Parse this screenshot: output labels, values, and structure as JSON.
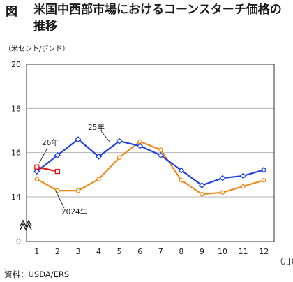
{
  "figure": {
    "label": "図",
    "title": "米国中西部市場におけるコーンスターチ価格の推移",
    "unit_note": "（米セント/ポンド）",
    "source": "資料：USDA/ERS"
  },
  "chart_data": {
    "type": "line",
    "title": "米国中西部市場におけるコーンスターチ価格の推移",
    "ylabel": "（米セント/ポンド）",
    "xlabel": "（月）",
    "x": [
      1,
      2,
      3,
      4,
      5,
      6,
      7,
      8,
      9,
      10,
      11,
      12
    ],
    "x_tick_labels": [
      "1",
      "2",
      "3",
      "4",
      "5",
      "6",
      "7",
      "8",
      "9",
      "10",
      "11",
      "12"
    ],
    "ylim": [
      0,
      20
    ],
    "y_axis_break": true,
    "y_ticks": [
      0,
      14,
      16,
      18,
      20
    ],
    "y_tick_labels": [
      "0",
      "14",
      "16",
      "18",
      "20"
    ],
    "grid": "horizontal",
    "series": [
      {
        "name": "2024年",
        "color": "#f08a1c",
        "marker": "circle",
        "x": [
          1,
          2,
          3,
          4,
          5,
          6,
          7,
          8,
          9,
          10,
          11,
          12
        ],
        "values": [
          14.8,
          14.28,
          14.28,
          14.8,
          15.78,
          16.5,
          16.13,
          14.75,
          14.12,
          14.2,
          14.47,
          14.75
        ]
      },
      {
        "name": "25年",
        "color": "#1f3fe0",
        "marker": "diamond",
        "x": [
          1,
          2,
          3,
          4,
          5,
          6,
          7,
          8,
          9,
          10,
          11,
          12
        ],
        "values": [
          15.15,
          15.88,
          16.6,
          15.82,
          16.52,
          16.3,
          15.88,
          15.2,
          14.52,
          14.85,
          14.95,
          15.22
        ]
      },
      {
        "name": "26年",
        "color": "#e01414",
        "marker": "square",
        "x": [
          1,
          2
        ],
        "values": [
          15.35,
          15.15
        ]
      }
    ]
  }
}
